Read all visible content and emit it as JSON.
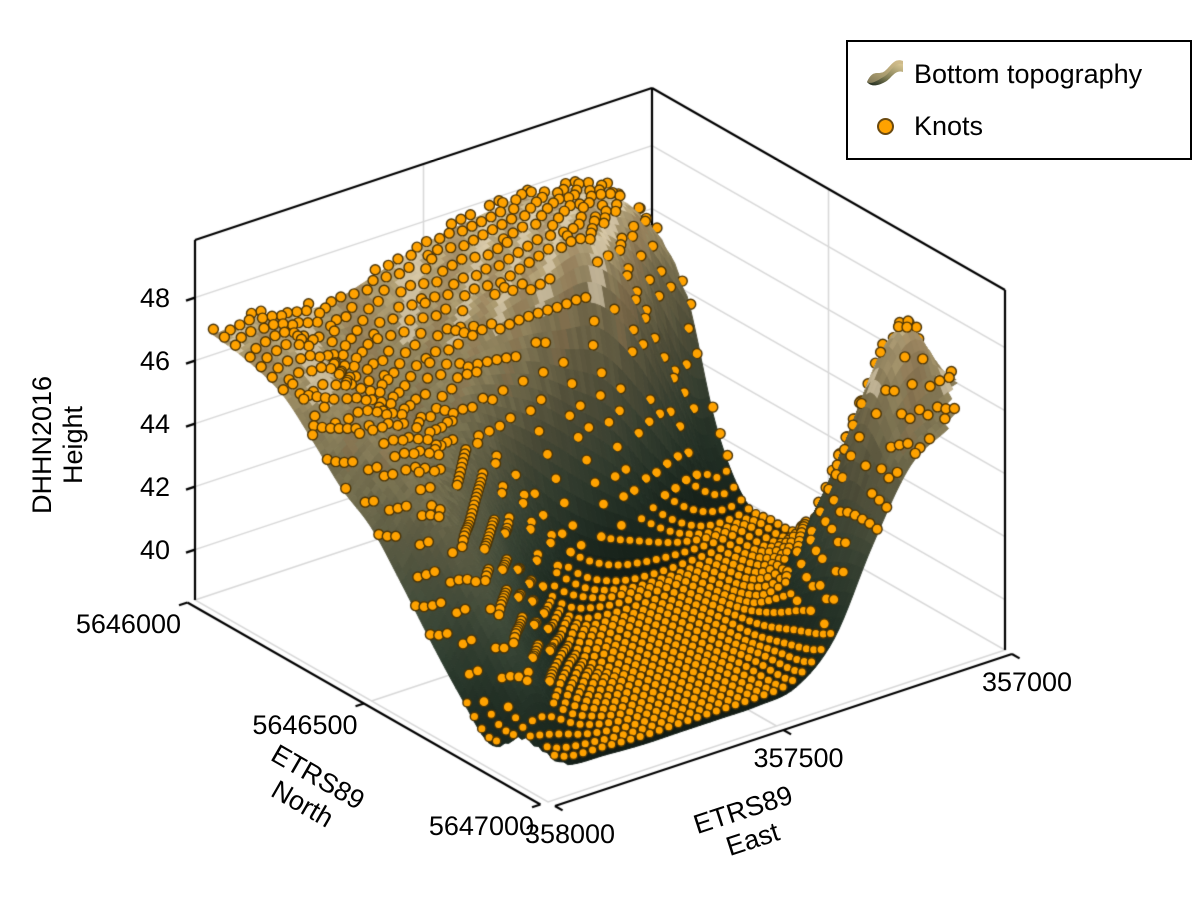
{
  "legend": {
    "items": [
      {
        "label": "Bottom topography",
        "type": "surface"
      },
      {
        "label": "Knots",
        "type": "marker"
      }
    ]
  },
  "axes": {
    "east": {
      "title_lines": [
        "ETRS89",
        "East"
      ],
      "ticks": [
        {
          "value": "358000",
          "u": 0
        },
        {
          "value": "357500",
          "u": 0.5
        },
        {
          "value": "357000",
          "u": 1
        }
      ]
    },
    "north": {
      "title_lines": [
        "ETRS89",
        "North"
      ],
      "ticks": [
        {
          "value": "5646000",
          "v": 0
        },
        {
          "value": "5646500",
          "v": 0.5
        },
        {
          "value": "5647000",
          "v": 1
        }
      ]
    },
    "height": {
      "title_lines": [
        "DHHN2016",
        "Height"
      ],
      "ticks": [
        {
          "value": "40",
          "z": 40
        },
        {
          "value": "42",
          "z": 42
        },
        {
          "value": "44",
          "z": 44
        },
        {
          "value": "46",
          "z": 46
        },
        {
          "value": "48",
          "z": 48
        }
      ]
    }
  },
  "colors": {
    "background": "#ffffff",
    "frame": "#000000",
    "gridline": "#d8d8d8",
    "marker_fill": "#ffa200",
    "marker_stroke": "#4a3408",
    "text": "#000000"
  },
  "chart_data": {
    "type": "surface",
    "title": "",
    "xlabel": "ETRS89 East",
    "ylabel": "ETRS89 North",
    "zlabel": "DHHN2016 Height",
    "x_range": [
      358000,
      357000
    ],
    "y_range": [
      5646000,
      5647000
    ],
    "z_range": [
      38.4,
      49.83
    ],
    "z_ticks": [
      40,
      42,
      44,
      46,
      48
    ],
    "series": [
      {
        "name": "Bottom topography",
        "type": "surface"
      },
      {
        "name": "Knots",
        "type": "scatter3d-markers"
      }
    ],
    "colormap": [
      [
        0.0,
        "#0e150f"
      ],
      [
        0.04,
        "#16211a"
      ],
      [
        0.1,
        "#1f2d23"
      ],
      [
        0.2,
        "#2f3f31"
      ],
      [
        0.32,
        "#46523f"
      ],
      [
        0.45,
        "#636349"
      ],
      [
        0.58,
        "#827a57"
      ],
      [
        0.7,
        "#a29268"
      ],
      [
        0.8,
        "#bba87c"
      ],
      [
        0.88,
        "#cbbb93"
      ],
      [
        1.0,
        "#ddd2b2"
      ]
    ],
    "height_grid": {
      "comment": "DHHN2016 heights (m) on a 13x13 grid; rows = ETRS89 North 5646000->5647000, cols = ETRS89 East 358000->357000; null = outside surveyed surface",
      "u_count": 13,
      "v_count": 13,
      "values": [
        [
          null,
          null,
          null,
          null,
          null,
          null,
          null,
          null,
          null,
          null,
          null,
          null,
          null
        ],
        [
          47.1,
          47.3,
          47.0,
          46.8,
          47.2,
          47.6,
          47.9,
          48.1,
          48.3,
          48.1,
          47.8,
          null,
          null
        ],
        [
          46.9,
          47.2,
          46.4,
          46.2,
          46.7,
          47.1,
          47.5,
          47.9,
          48.2,
          48.0,
          47.4,
          45.5,
          null
        ],
        [
          46.5,
          46.8,
          46.0,
          45.7,
          46.1,
          46.5,
          46.9,
          47.2,
          47.4,
          46.2,
          43.5,
          40.8,
          null
        ],
        [
          45.6,
          46.2,
          45.6,
          45.1,
          45.4,
          45.0,
          44.3,
          43.2,
          42.0,
          40.3,
          39.2,
          38.9,
          null
        ],
        [
          44.6,
          45.6,
          45.2,
          44.6,
          43.4,
          41.6,
          40.0,
          39.2,
          38.9,
          38.8,
          38.8,
          38.9,
          null
        ],
        [
          43.9,
          45.0,
          44.4,
          43.2,
          41.0,
          39.3,
          38.8,
          38.7,
          38.7,
          38.7,
          38.8,
          39.0,
          null
        ],
        [
          42.7,
          44.2,
          43.2,
          41.6,
          39.6,
          38.8,
          38.7,
          38.7,
          38.7,
          38.8,
          39.4,
          40.6,
          null
        ],
        [
          41.4,
          43.1,
          42.0,
          40.2,
          38.9,
          38.7,
          38.7,
          38.7,
          38.8,
          39.4,
          41.2,
          43.2,
          null
        ],
        [
          40.2,
          41.9,
          40.6,
          39.3,
          38.8,
          38.7,
          38.7,
          38.7,
          39.0,
          40.8,
          43.8,
          45.8,
          44.5
        ],
        [
          39.2,
          40.6,
          39.5,
          38.9,
          38.7,
          38.7,
          38.7,
          38.8,
          39.4,
          42.2,
          46.3,
          48.0,
          45.6
        ],
        [
          null,
          39.0,
          38.8,
          38.7,
          38.7,
          38.7,
          38.7,
          38.8,
          39.8,
          42.6,
          45.0,
          45.8,
          null
        ],
        [
          null,
          null,
          null,
          null,
          null,
          null,
          null,
          null,
          null,
          null,
          null,
          null,
          null
        ]
      ]
    },
    "knots": {
      "marker_color": "#ffa200",
      "marker_line_color": "#4a3408",
      "pattern": "dense regular grid on low channel floor (~38.7 m); contour-line strings on slopes and plateau"
    }
  }
}
